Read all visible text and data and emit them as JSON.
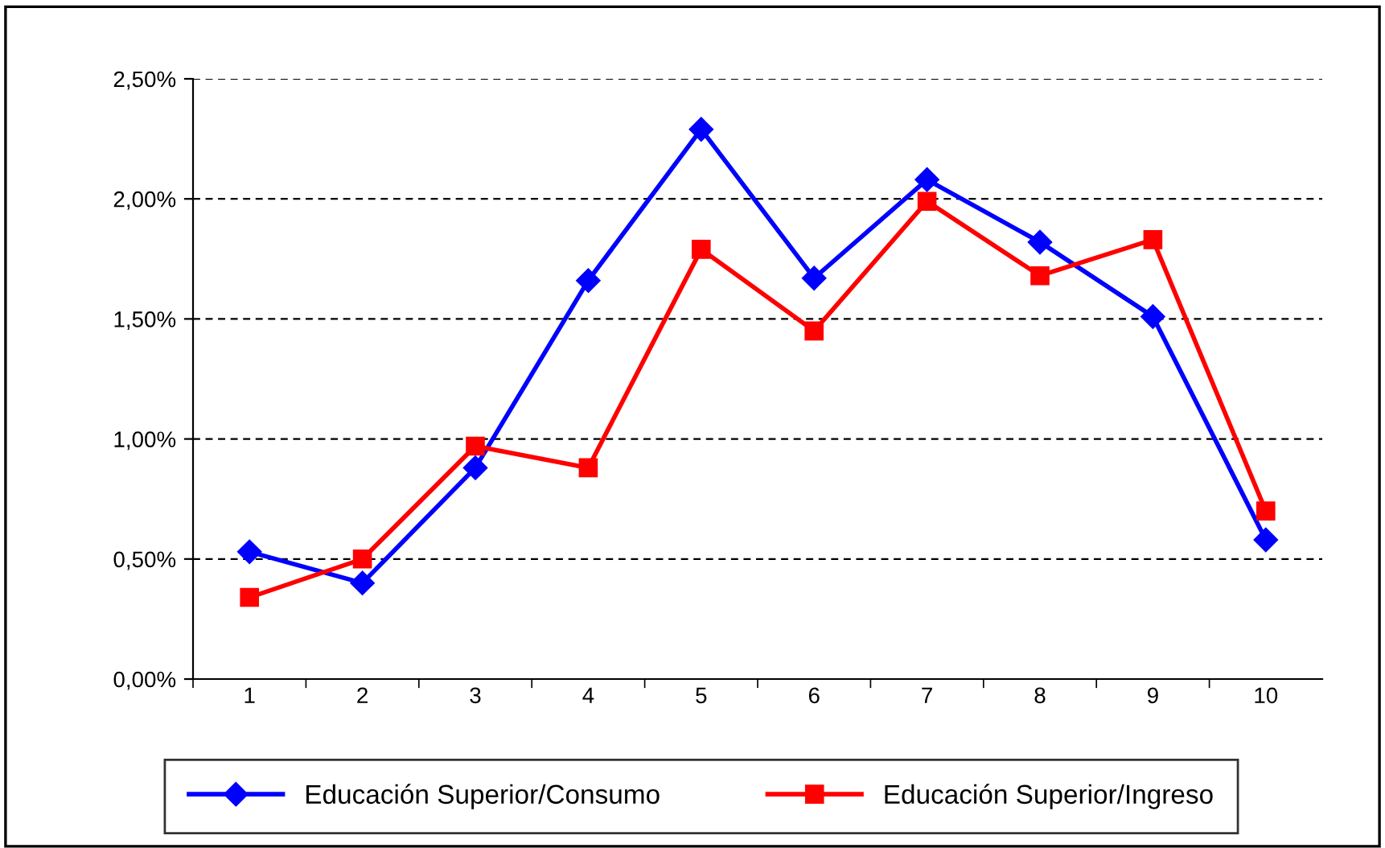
{
  "chart_data": {
    "type": "line",
    "categories": [
      "1",
      "2",
      "3",
      "4",
      "5",
      "6",
      "7",
      "8",
      "9",
      "10"
    ],
    "series": [
      {
        "name": "Educación Superior/Consumo",
        "color": "#0000ff",
        "marker": "diamond",
        "values": [
          0.53,
          0.4,
          0.88,
          1.66,
          2.29,
          1.67,
          2.08,
          1.82,
          1.51,
          0.58
        ]
      },
      {
        "name": "Educación Superior/Ingreso",
        "color": "#ff0000",
        "marker": "square",
        "values": [
          0.34,
          0.5,
          0.97,
          0.88,
          1.79,
          1.45,
          1.99,
          1.68,
          1.83,
          0.7
        ]
      }
    ],
    "ylim": [
      0,
      2.5
    ],
    "yticks": [
      {
        "value": 0,
        "label": "0,00%"
      },
      {
        "value": 0.5,
        "label": "0,50%"
      },
      {
        "value": 1.0,
        "label": "1,00%"
      },
      {
        "value": 1.5,
        "label": "1,50%"
      },
      {
        "value": 2.0,
        "label": "2,00%"
      },
      {
        "value": 2.5,
        "label": "2,50%"
      }
    ],
    "grid": "y",
    "legend": "bottom",
    "line_style": "solid"
  }
}
